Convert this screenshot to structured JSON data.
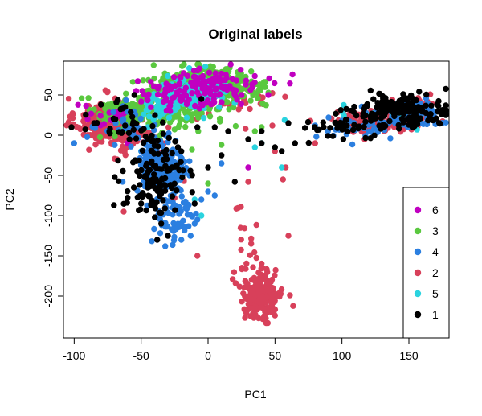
{
  "chart_data": {
    "type": "scatter",
    "title": "Original labels",
    "xlabel": "PC1",
    "ylabel": "PC2",
    "xlim": [
      -108,
      180
    ],
    "ylim": [
      -252,
      92
    ],
    "xticks": [
      -100,
      -50,
      0,
      50,
      100,
      150
    ],
    "yticks": [
      50,
      0,
      -50,
      -100,
      -150,
      -200
    ],
    "grid": false,
    "legend_position": "bottom-right",
    "legend": [
      {
        "label": "6",
        "color": "#c000c0"
      },
      {
        "label": "3",
        "color": "#5ac83f"
      },
      {
        "label": "4",
        "color": "#2b7fe0"
      },
      {
        "label": "2",
        "color": "#d8405a"
      },
      {
        "label": "5",
        "color": "#2ad3df"
      },
      {
        "label": "1",
        "color": "#000000"
      }
    ],
    "series": [
      {
        "name": "2",
        "color": "#d8405a",
        "clusters": [
          {
            "cx": -75,
            "cy": 18,
            "sx": 12,
            "sy": 14,
            "n": 230
          },
          {
            "cx": -55,
            "cy": 5,
            "sx": 10,
            "sy": 15,
            "n": 80
          },
          {
            "cx": 40,
            "cy": -197,
            "sx": 8,
            "sy": 17,
            "n": 210
          },
          {
            "cx": 120,
            "cy": 18,
            "sx": 15,
            "sy": 7,
            "n": 110
          },
          {
            "cx": 152,
            "cy": 28,
            "sx": 10,
            "sy": 9,
            "n": 70
          },
          {
            "cx": 15,
            "cy": 45,
            "sx": 15,
            "sy": 10,
            "n": 40
          },
          {
            "cx": 28,
            "cy": -115,
            "sx": 6,
            "sy": 15,
            "n": 10
          }
        ],
        "points": [
          [
            -92,
            12
          ],
          [
            -68,
            -30
          ],
          [
            -63,
            -95
          ],
          [
            -28,
            -82
          ],
          [
            -18,
            -57
          ],
          [
            -25,
            -78
          ],
          [
            -8,
            -150
          ],
          [
            30,
            -58
          ],
          [
            58,
            -40
          ],
          [
            60,
            -125
          ],
          [
            56,
            -55
          ],
          [
            48,
            12
          ],
          [
            50,
            -20
          ],
          [
            28,
            8
          ],
          [
            80,
            -10
          ]
        ]
      },
      {
        "name": "3",
        "color": "#5ac83f",
        "clusters": [
          {
            "cx": -15,
            "cy": 48,
            "sx": 20,
            "sy": 16,
            "n": 240
          },
          {
            "cx": -50,
            "cy": 25,
            "sx": 14,
            "sy": 12,
            "n": 120
          },
          {
            "cx": 20,
            "cy": 60,
            "sx": 12,
            "sy": 8,
            "n": 90
          },
          {
            "cx": -5,
            "cy": 72,
            "sx": 14,
            "sy": 7,
            "n": 60
          },
          {
            "cx": -75,
            "cy": 30,
            "sx": 10,
            "sy": 10,
            "n": 25
          }
        ],
        "points": [
          [
            -12,
            -18
          ],
          [
            10,
            -12
          ],
          [
            35,
            5
          ],
          [
            40,
            10
          ],
          [
            0,
            -60
          ]
        ]
      },
      {
        "name": "5",
        "color": "#2ad3df",
        "clusters": [
          {
            "cx": -10,
            "cy": 52,
            "sx": 12,
            "sy": 10,
            "n": 140
          },
          {
            "cx": -30,
            "cy": 40,
            "sx": 10,
            "sy": 8,
            "n": 60
          },
          {
            "cx": 140,
            "cy": 25,
            "sx": 20,
            "sy": 7,
            "n": 25
          }
        ],
        "points": [
          [
            40,
            -10
          ],
          [
            55,
            -40
          ],
          [
            35,
            -15
          ],
          [
            -10,
            -80
          ],
          [
            -5,
            -100
          ],
          [
            -50,
            -20
          ],
          [
            -45,
            10
          ],
          [
            20,
            40
          ]
        ]
      },
      {
        "name": "6",
        "color": "#c000c0",
        "clusters": [
          {
            "cx": 0,
            "cy": 60,
            "sx": 20,
            "sy": 11,
            "n": 110
          },
          {
            "cx": -30,
            "cy": 48,
            "sx": 12,
            "sy": 10,
            "n": 40
          },
          {
            "cx": -70,
            "cy": 25,
            "sx": 10,
            "sy": 8,
            "n": 15
          }
        ],
        "points": [
          [
            30,
            -40
          ],
          [
            -40,
            -40
          ],
          [
            -60,
            -10
          ],
          [
            45,
            50
          ],
          [
            -20,
            -45
          ],
          [
            25,
            50
          ],
          [
            -90,
            20
          ]
        ]
      },
      {
        "name": "4",
        "color": "#2b7fe0",
        "clusters": [
          {
            "cx": -35,
            "cy": -40,
            "sx": 9,
            "sy": 18,
            "n": 210
          },
          {
            "cx": -25,
            "cy": -100,
            "sx": 9,
            "sy": 18,
            "n": 60
          },
          {
            "cx": 150,
            "cy": 25,
            "sx": 13,
            "sy": 8,
            "n": 110
          },
          {
            "cx": 115,
            "cy": 8,
            "sx": 15,
            "sy": 6,
            "n": 30
          },
          {
            "cx": -60,
            "cy": 10,
            "sx": 10,
            "sy": 12,
            "n": 30
          }
        ],
        "points": [
          [
            -100,
            -10
          ],
          [
            0,
            -70
          ],
          [
            5,
            -75
          ],
          [
            -8,
            -105
          ],
          [
            -13,
            -125
          ],
          [
            -20,
            -130
          ],
          [
            -32,
            -138
          ],
          [
            -10,
            -110
          ],
          [
            80,
            12
          ],
          [
            90,
            22
          ],
          [
            100,
            18
          ],
          [
            -5,
            -80
          ],
          [
            10,
            -35
          ]
        ]
      },
      {
        "name": "1",
        "color": "#000000",
        "clusters": [
          {
            "cx": -40,
            "cy": -55,
            "sx": 12,
            "sy": 25,
            "n": 120
          },
          {
            "cx": 145,
            "cy": 30,
            "sx": 18,
            "sy": 10,
            "n": 170
          },
          {
            "cx": 95,
            "cy": 10,
            "sx": 15,
            "sy": 8,
            "n": 35
          },
          {
            "cx": -60,
            "cy": 15,
            "sx": 15,
            "sy": 15,
            "n": 35
          }
        ],
        "points": [
          [
            -102,
            10
          ],
          [
            -85,
            15
          ],
          [
            -80,
            38
          ],
          [
            -50,
            -85
          ],
          [
            -10,
            -85
          ],
          [
            0,
            -40
          ],
          [
            -20,
            -20
          ],
          [
            10,
            -25
          ],
          [
            20,
            -58
          ],
          [
            40,
            5
          ],
          [
            50,
            -15
          ],
          [
            60,
            15
          ],
          [
            65,
            -10
          ],
          [
            55,
            -20
          ],
          [
            -5,
            45
          ],
          [
            5,
            10
          ],
          [
            30,
            -5
          ],
          [
            -62,
            35
          ],
          [
            -55,
            50
          ],
          [
            -45,
            -65
          ],
          [
            -35,
            -110
          ],
          [
            -30,
            -125
          ],
          [
            -38,
            -130
          ],
          [
            -8,
            10
          ],
          [
            15,
            5
          ],
          [
            40,
            -10
          ]
        ]
      }
    ]
  }
}
